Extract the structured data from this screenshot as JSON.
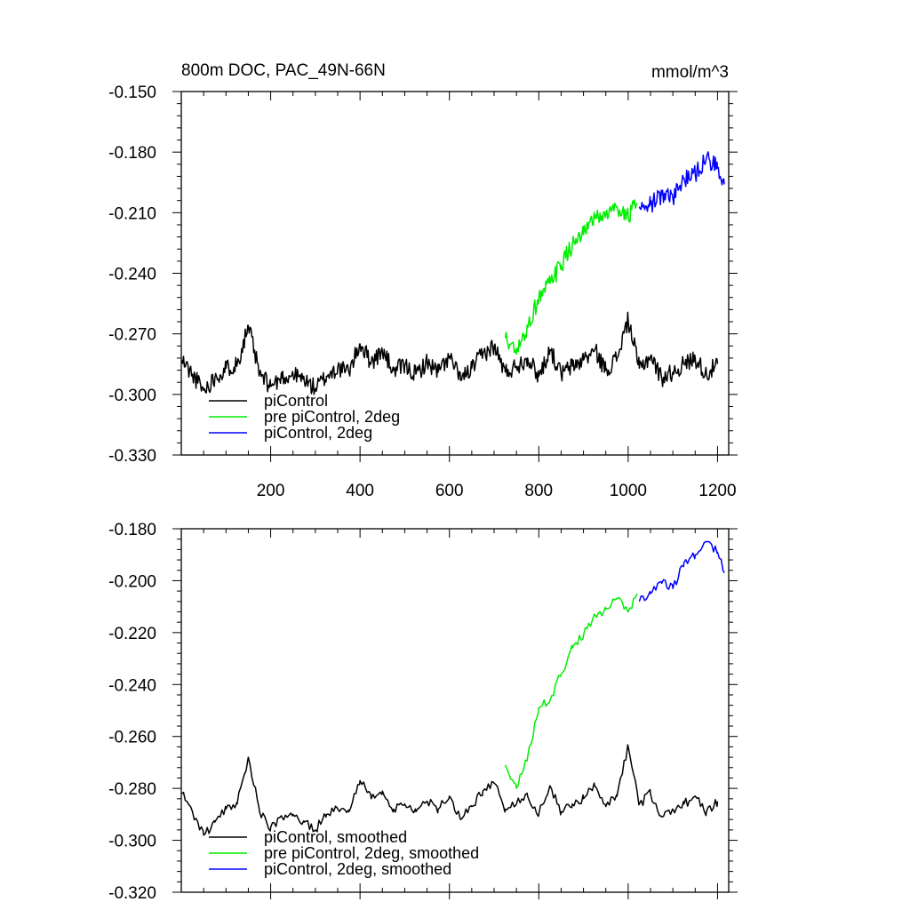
{
  "chart_data": [
    {
      "type": "line",
      "title": "800m DOC, PAC_49N-66N",
      "units_label": "mmol/m^3",
      "xlabel": "",
      "ylabel": "",
      "xlim": [
        0,
        1225
      ],
      "ylim": [
        -0.33,
        -0.15
      ],
      "xticks": [
        200,
        400,
        600,
        800,
        1000,
        1200
      ],
      "xtick_labels": [
        "200",
        "400",
        "600",
        "800",
        "1000",
        "1200"
      ],
      "yticks": [
        -0.15,
        -0.18,
        -0.21,
        -0.24,
        -0.27,
        -0.3,
        -0.33
      ],
      "ytick_labels": [
        "-0.150",
        "-0.180",
        "-0.210",
        "-0.240",
        "-0.270",
        "-0.300",
        "-0.330"
      ],
      "grid": false,
      "legend_position": "bottom-left",
      "series": [
        {
          "name": "piControl",
          "color": "#000000",
          "x": [
            1,
            25,
            50,
            75,
            100,
            125,
            150,
            175,
            200,
            225,
            250,
            275,
            300,
            325,
            350,
            375,
            400,
            425,
            450,
            475,
            500,
            525,
            550,
            575,
            600,
            625,
            650,
            675,
            700,
            725,
            750,
            775,
            800,
            825,
            850,
            875,
            900,
            925,
            950,
            975,
            1000,
            1025,
            1050,
            1075,
            1100,
            1125,
            1150,
            1175,
            1200
          ],
          "y": [
            -0.283,
            -0.29,
            -0.298,
            -0.292,
            -0.287,
            -0.285,
            -0.266,
            -0.29,
            -0.296,
            -0.292,
            -0.29,
            -0.293,
            -0.297,
            -0.291,
            -0.287,
            -0.289,
            -0.275,
            -0.284,
            -0.279,
            -0.288,
            -0.286,
            -0.29,
            -0.284,
            -0.289,
            -0.281,
            -0.293,
            -0.287,
            -0.28,
            -0.276,
            -0.289,
            -0.286,
            -0.282,
            -0.291,
            -0.278,
            -0.29,
            -0.286,
            -0.283,
            -0.278,
            -0.288,
            -0.282,
            -0.263,
            -0.287,
            -0.281,
            -0.292,
            -0.289,
            -0.285,
            -0.282,
            -0.29,
            -0.285
          ]
        },
        {
          "name": "pre piControl, 2deg",
          "color": "#00ee00",
          "x": [
            725,
            750,
            775,
            800,
            825,
            850,
            875,
            900,
            925,
            950,
            975,
            1000,
            1020
          ],
          "y": [
            -0.272,
            -0.28,
            -0.267,
            -0.252,
            -0.245,
            -0.236,
            -0.226,
            -0.221,
            -0.213,
            -0.211,
            -0.207,
            -0.212,
            -0.205
          ]
        },
        {
          "name": "piControl, 2deg",
          "color": "#0000ff",
          "x": [
            1025,
            1050,
            1075,
            1100,
            1125,
            1150,
            1175,
            1200,
            1215
          ],
          "y": [
            -0.207,
            -0.206,
            -0.201,
            -0.203,
            -0.193,
            -0.191,
            -0.183,
            -0.188,
            -0.196
          ]
        }
      ]
    },
    {
      "type": "line",
      "title": "",
      "xlabel": "",
      "ylabel": "",
      "xlim": [
        0,
        1225
      ],
      "ylim": [
        -0.32,
        -0.18
      ],
      "xticks": [
        200,
        400,
        600,
        800,
        1000,
        1200
      ],
      "yticks": [
        -0.18,
        -0.2,
        -0.22,
        -0.24,
        -0.26,
        -0.28,
        -0.3,
        -0.32
      ],
      "ytick_labels": [
        "-0.180",
        "-0.200",
        "-0.220",
        "-0.240",
        "-0.260",
        "-0.280",
        "-0.300",
        "-0.320"
      ],
      "grid": false,
      "legend_position": "bottom-left",
      "series": [
        {
          "name": "piControl, smoothed",
          "color": "#000000",
          "x": [
            1,
            25,
            50,
            75,
            100,
            125,
            150,
            175,
            200,
            225,
            250,
            275,
            300,
            325,
            350,
            375,
            400,
            425,
            450,
            475,
            500,
            525,
            550,
            575,
            600,
            625,
            650,
            675,
            700,
            725,
            750,
            775,
            800,
            825,
            850,
            875,
            900,
            925,
            950,
            975,
            1000,
            1025,
            1050,
            1075,
            1100,
            1125,
            1150,
            1175,
            1200
          ],
          "y": [
            -0.282,
            -0.289,
            -0.298,
            -0.293,
            -0.288,
            -0.286,
            -0.268,
            -0.289,
            -0.295,
            -0.291,
            -0.29,
            -0.293,
            -0.296,
            -0.29,
            -0.288,
            -0.289,
            -0.277,
            -0.284,
            -0.281,
            -0.288,
            -0.286,
            -0.289,
            -0.285,
            -0.288,
            -0.283,
            -0.292,
            -0.287,
            -0.281,
            -0.278,
            -0.288,
            -0.286,
            -0.283,
            -0.29,
            -0.279,
            -0.289,
            -0.286,
            -0.284,
            -0.279,
            -0.287,
            -0.283,
            -0.264,
            -0.286,
            -0.282,
            -0.291,
            -0.288,
            -0.286,
            -0.283,
            -0.289,
            -0.285
          ]
        },
        {
          "name": "pre piControl, 2deg, smoothed",
          "color": "#00ee00",
          "x": [
            725,
            750,
            775,
            800,
            825,
            850,
            875,
            900,
            925,
            950,
            975,
            1000,
            1020
          ],
          "y": [
            -0.271,
            -0.28,
            -0.268,
            -0.249,
            -0.246,
            -0.236,
            -0.226,
            -0.221,
            -0.213,
            -0.211,
            -0.207,
            -0.212,
            -0.205
          ]
        },
        {
          "name": "piControl, 2deg, smoothed",
          "color": "#0000ff",
          "x": [
            1025,
            1050,
            1075,
            1100,
            1125,
            1150,
            1175,
            1200,
            1215
          ],
          "y": [
            -0.208,
            -0.205,
            -0.201,
            -0.203,
            -0.193,
            -0.19,
            -0.185,
            -0.189,
            -0.197
          ]
        }
      ]
    }
  ]
}
